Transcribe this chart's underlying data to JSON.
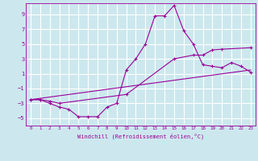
{
  "xlabel": "Windchill (Refroidissement éolien,°C)",
  "bg_color": "#cce8ee",
  "line_color": "#990099",
  "grid_color": "#ffffff",
  "xlim": [
    -0.5,
    23.5
  ],
  "ylim": [
    -6.0,
    10.5
  ],
  "xticks": [
    0,
    1,
    2,
    3,
    4,
    5,
    6,
    7,
    8,
    9,
    10,
    11,
    12,
    13,
    14,
    15,
    16,
    17,
    18,
    19,
    20,
    21,
    22,
    23
  ],
  "yticks": [
    -5,
    -3,
    -1,
    1,
    3,
    5,
    7,
    9
  ],
  "series1": [
    [
      0,
      -2.5
    ],
    [
      1,
      -2.5
    ],
    [
      2,
      -3.0
    ],
    [
      3,
      -3.5
    ],
    [
      4,
      -3.8
    ],
    [
      5,
      -4.8
    ],
    [
      6,
      -4.8
    ],
    [
      7,
      -4.8
    ],
    [
      8,
      -3.5
    ],
    [
      9,
      -3.0
    ],
    [
      10,
      1.5
    ],
    [
      11,
      3.0
    ],
    [
      12,
      5.0
    ],
    [
      13,
      8.8
    ],
    [
      14,
      8.8
    ],
    [
      15,
      10.2
    ],
    [
      16,
      6.8
    ],
    [
      17,
      5.0
    ],
    [
      18,
      2.2
    ],
    [
      19,
      2.0
    ],
    [
      20,
      1.8
    ],
    [
      21,
      2.5
    ],
    [
      22,
      2.0
    ],
    [
      23,
      1.2
    ]
  ],
  "series2": [
    [
      0,
      -2.5
    ],
    [
      1,
      -2.5
    ],
    [
      2,
      -2.7
    ],
    [
      3,
      -3.0
    ],
    [
      10,
      -1.8
    ],
    [
      15,
      3.0
    ],
    [
      17,
      3.5
    ],
    [
      18,
      3.5
    ],
    [
      19,
      4.2
    ],
    [
      20,
      4.3
    ],
    [
      23,
      4.5
    ]
  ],
  "series3": [
    [
      0,
      -2.5
    ],
    [
      23,
      1.5
    ]
  ]
}
